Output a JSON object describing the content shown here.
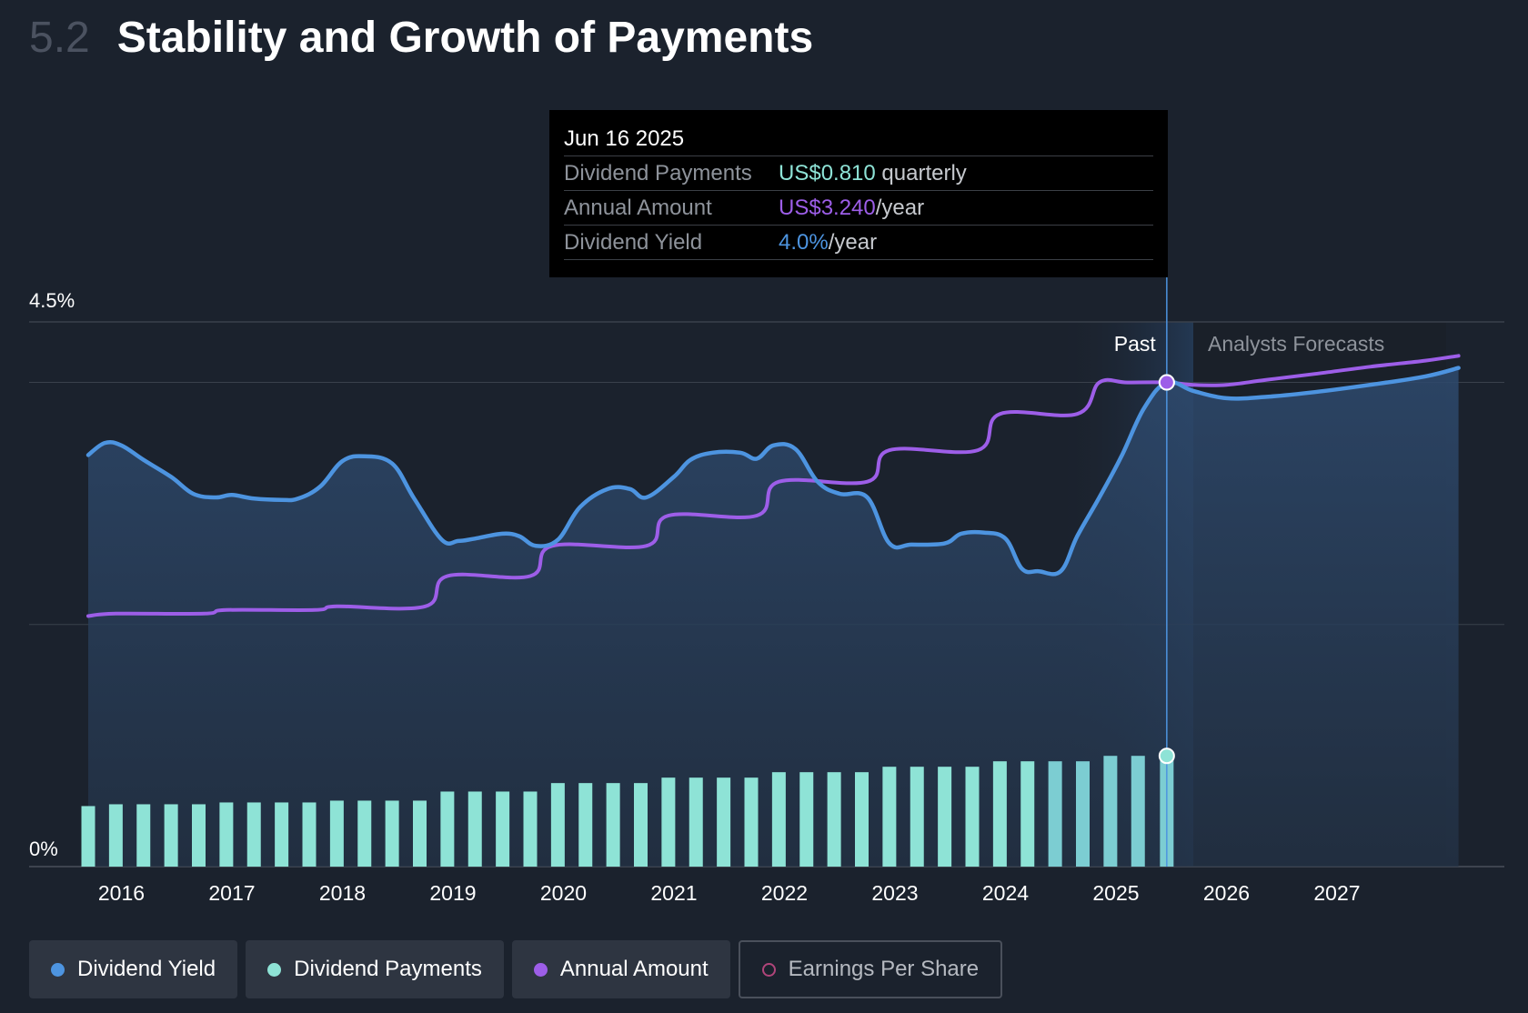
{
  "header": {
    "section_number": "5.2",
    "title": "Stability and Growth of Payments"
  },
  "tooltip": {
    "date": "Jun 16 2025",
    "rows": [
      {
        "label": "Dividend Payments",
        "value": "US$0.810",
        "suffix": " quarterly"
      },
      {
        "label": "Annual Amount",
        "value": "US$3.240",
        "suffix": "/year"
      },
      {
        "label": "Dividend Yield",
        "value": "4.0%",
        "suffix": "/year"
      }
    ]
  },
  "legend": [
    {
      "label": "Dividend Yield",
      "color": "#4d94e0",
      "active": true
    },
    {
      "label": "Dividend Payments",
      "color": "#8ee3d6",
      "active": true
    },
    {
      "label": "Annual Amount",
      "color": "#9d5ee8",
      "active": true
    },
    {
      "label": "Earnings Per Share",
      "color": "#b0457a",
      "active": false
    }
  ],
  "chart_data": {
    "type": "line",
    "y_ticks": [
      "4.5%",
      "0%"
    ],
    "ylim": [
      0,
      4.5
    ],
    "xlim": [
      2015.7,
      2028.1
    ],
    "x_tick_labels": [
      "2016",
      "2017",
      "2018",
      "2019",
      "2020",
      "2021",
      "2022",
      "2023",
      "2024",
      "2025",
      "2026",
      "2027"
    ],
    "region_labels": {
      "past": "Past",
      "forecast": "Analysts Forecasts"
    },
    "highlight_x": 2025.46,
    "forecast_start": 2025.7,
    "series": [
      {
        "name": "Dividend Yield",
        "color": "#4d94e0",
        "x": [
          2015.7,
          2015.85,
          2016.0,
          2016.2,
          2016.45,
          2016.65,
          2016.85,
          2017.0,
          2017.2,
          2017.45,
          2017.6,
          2017.8,
          2018.0,
          2018.2,
          2018.45,
          2018.65,
          2018.9,
          2019.05,
          2019.2,
          2019.45,
          2019.6,
          2019.75,
          2019.95,
          2020.15,
          2020.4,
          2020.6,
          2020.75,
          2021.0,
          2021.15,
          2021.35,
          2021.6,
          2021.75,
          2021.9,
          2022.1,
          2022.3,
          2022.5,
          2022.75,
          2022.95,
          2023.15,
          2023.45,
          2023.6,
          2023.8,
          2024.0,
          2024.15,
          2024.3,
          2024.5,
          2024.65,
          2024.85,
          2025.05,
          2025.25,
          2025.46,
          2025.7,
          2026.0,
          2026.35,
          2026.8,
          2027.3,
          2027.8,
          2028.1
        ],
        "y": [
          3.4,
          3.5,
          3.48,
          3.36,
          3.22,
          3.08,
          3.05,
          3.07,
          3.04,
          3.03,
          3.04,
          3.14,
          3.35,
          3.39,
          3.33,
          3.04,
          2.7,
          2.69,
          2.71,
          2.75,
          2.73,
          2.65,
          2.7,
          2.97,
          3.12,
          3.12,
          3.05,
          3.22,
          3.36,
          3.42,
          3.42,
          3.37,
          3.48,
          3.45,
          3.18,
          3.08,
          3.05,
          2.67,
          2.66,
          2.67,
          2.75,
          2.76,
          2.71,
          2.46,
          2.44,
          2.44,
          2.73,
          3.05,
          3.39,
          3.78,
          4.0,
          3.93,
          3.87,
          3.88,
          3.92,
          3.98,
          4.05,
          4.12
        ]
      },
      {
        "name": "Annual Amount",
        "color": "#9d5ee8",
        "x": [
          2015.7,
          2015.95,
          2016.75,
          2016.95,
          2017.75,
          2017.95,
          2018.75,
          2018.95,
          2019.7,
          2019.9,
          2020.75,
          2020.95,
          2021.75,
          2021.95,
          2022.75,
          2022.95,
          2023.75,
          2023.95,
          2024.65,
          2024.85,
          2025.1,
          2025.46,
          2025.7,
          2026.0,
          2026.35,
          2026.8,
          2027.3,
          2027.8,
          2028.1
        ],
        "y": [
          2.07,
          2.09,
          2.09,
          2.12,
          2.12,
          2.15,
          2.15,
          2.4,
          2.4,
          2.65,
          2.65,
          2.9,
          2.9,
          3.18,
          3.18,
          3.44,
          3.44,
          3.74,
          3.74,
          4.0,
          4.0,
          4.0,
          3.98,
          3.98,
          4.02,
          4.07,
          4.13,
          4.18,
          4.22
        ]
      },
      {
        "name": "Dividend Payments",
        "color": "#8ee3d6",
        "bars": true,
        "x": [
          2015.7,
          2015.95,
          2016.2,
          2016.45,
          2016.7,
          2016.95,
          2017.2,
          2017.45,
          2017.7,
          2017.95,
          2018.2,
          2018.45,
          2018.7,
          2018.95,
          2019.2,
          2019.45,
          2019.7,
          2019.95,
          2020.2,
          2020.45,
          2020.7,
          2020.95,
          2021.2,
          2021.45,
          2021.7,
          2021.95,
          2022.2,
          2022.45,
          2022.7,
          2022.95,
          2023.2,
          2023.45,
          2023.7,
          2023.95,
          2024.2,
          2024.45,
          2024.7,
          2024.95,
          2025.2,
          2025.46
        ],
        "y": [
          0.5,
          0.515,
          0.515,
          0.515,
          0.515,
          0.53,
          0.53,
          0.53,
          0.53,
          0.545,
          0.545,
          0.545,
          0.545,
          0.62,
          0.62,
          0.62,
          0.62,
          0.69,
          0.69,
          0.69,
          0.69,
          0.735,
          0.735,
          0.735,
          0.735,
          0.78,
          0.78,
          0.78,
          0.78,
          0.825,
          0.825,
          0.825,
          0.825,
          0.87,
          0.87,
          0.87,
          0.87,
          0.915,
          0.915,
          0.915
        ]
      }
    ]
  }
}
